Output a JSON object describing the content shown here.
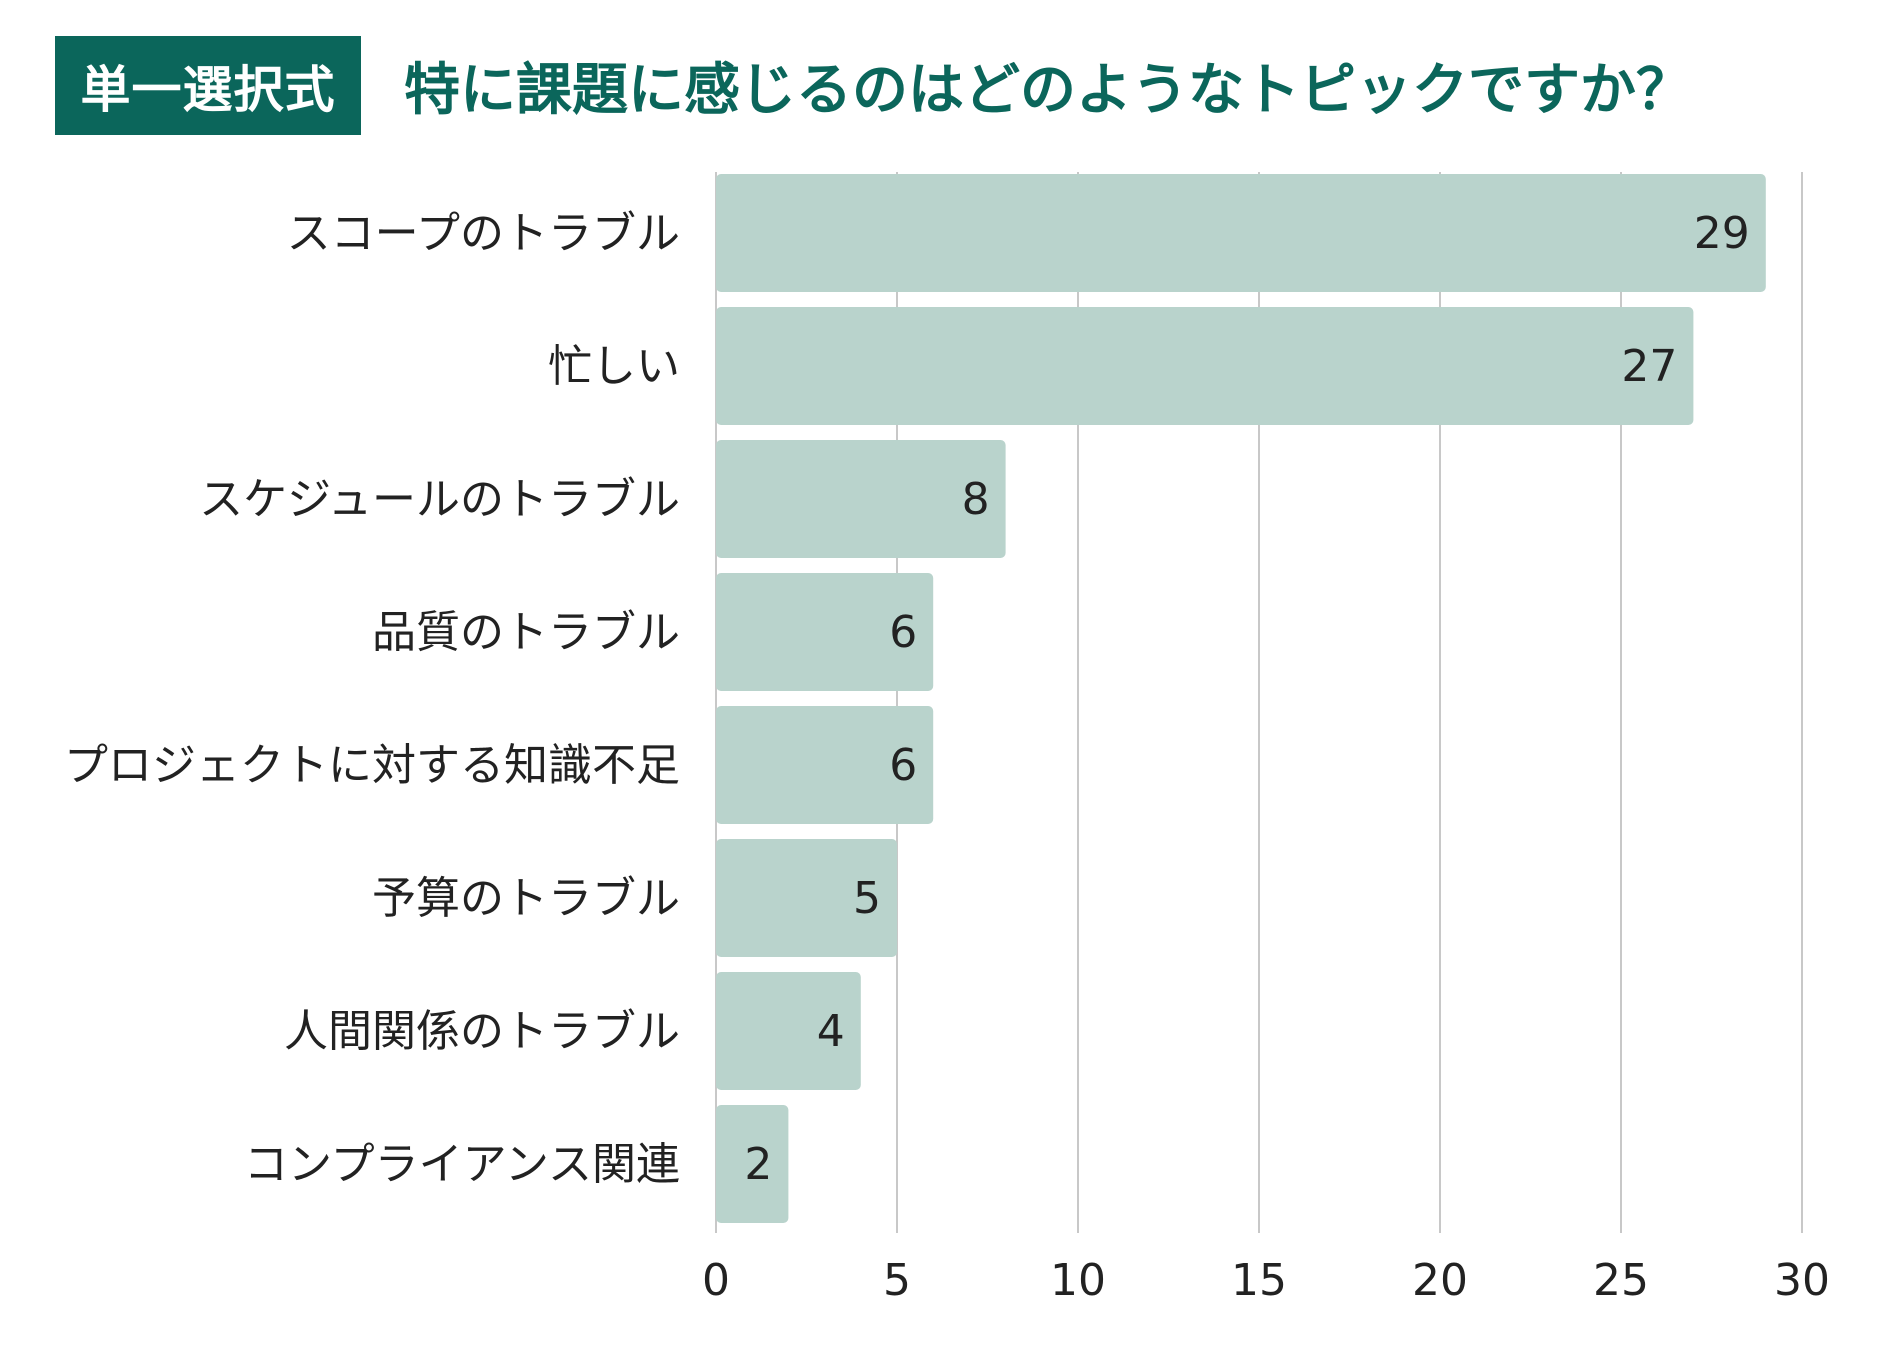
{
  "header": {
    "badge": "単一選択式",
    "title": "特に課題に感じるのはどのようなトピックですか？"
  },
  "colors": {
    "accent": "#0b665b",
    "bar": "#b9d3cc",
    "grid": "#c8c8c8",
    "text": "#222222"
  },
  "chart_data": {
    "type": "bar",
    "orientation": "horizontal",
    "categories": [
      "スコープのトラブル",
      "忙しい",
      "スケジュールのトラブル",
      "品質のトラブル",
      "プロジェクトに対する知識不足",
      "予算のトラブル",
      "人間関係のトラブル",
      "コンプライアンス関連"
    ],
    "values": [
      29,
      27,
      8,
      6,
      6,
      5,
      4,
      2
    ],
    "xlim": [
      0,
      30
    ],
    "xticks": [
      0,
      5,
      10,
      15,
      20,
      25,
      30
    ],
    "grid": true,
    "data_labels": true
  }
}
